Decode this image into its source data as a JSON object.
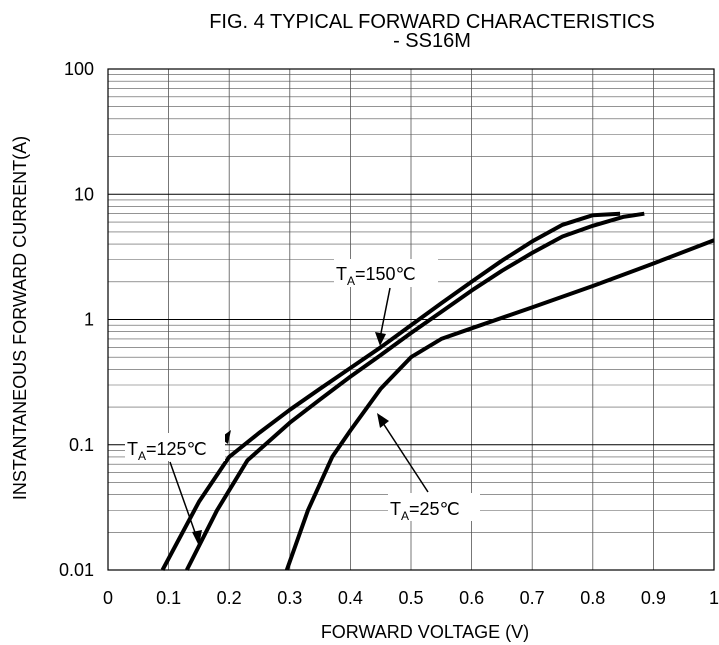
{
  "chart_data": {
    "type": "line",
    "title": "FIG. 4 TYPICAL FORWARD CHARACTERISTICS",
    "subtitle": "- SS16M",
    "xlabel": "FORWARD VOLTAGE (V)",
    "ylabel": "INSTANTANEOUS FORWARD CURRENT(A)",
    "xlim": [
      0,
      1
    ],
    "ylim": [
      0.01,
      100
    ],
    "y_scale": "log",
    "grid": true,
    "x_ticks": [
      "0",
      "0.1",
      "0.2",
      "0.3",
      "0.4",
      "0.5",
      "0.6",
      "0.7",
      "0.8",
      "0.9",
      "1"
    ],
    "y_ticks": [
      "0.01",
      "0.1",
      "1",
      "10",
      "100"
    ],
    "series": [
      {
        "name": "TA=150℃",
        "x": [
          0.09,
          0.15,
          0.2,
          0.25,
          0.3,
          0.35,
          0.4,
          0.45,
          0.5,
          0.55,
          0.6,
          0.65,
          0.7,
          0.75,
          0.8,
          0.845
        ],
        "y": [
          0.01,
          0.035,
          0.08,
          0.125,
          0.19,
          0.28,
          0.41,
          0.6,
          0.9,
          1.35,
          2.0,
          2.95,
          4.2,
          5.7,
          6.8,
          7.0
        ]
      },
      {
        "name": "TA=125℃",
        "x": [
          0.13,
          0.18,
          0.23,
          0.3,
          0.35,
          0.4,
          0.45,
          0.5,
          0.55,
          0.6,
          0.65,
          0.7,
          0.75,
          0.8,
          0.85,
          0.885
        ],
        "y": [
          0.01,
          0.03,
          0.075,
          0.15,
          0.23,
          0.35,
          0.52,
          0.78,
          1.15,
          1.7,
          2.45,
          3.4,
          4.6,
          5.6,
          6.6,
          7.0
        ]
      },
      {
        "name": "TA=25℃",
        "x": [
          0.295,
          0.33,
          0.37,
          0.4,
          0.45,
          0.5,
          0.55,
          0.6,
          0.7,
          0.8,
          0.9,
          1.0
        ],
        "y": [
          0.01,
          0.03,
          0.08,
          0.13,
          0.28,
          0.5,
          0.7,
          0.85,
          1.25,
          1.85,
          2.8,
          4.3
        ]
      }
    ],
    "annotations": {
      "ta150_base": "T",
      "ta150_sub": "A",
      "ta150_rest": "=150℃",
      "ta125_base": "T",
      "ta125_sub": "A",
      "ta125_rest": "=125℃",
      "ta25_base": "T",
      "ta25_sub": "A",
      "ta25_rest": "=25℃"
    }
  }
}
